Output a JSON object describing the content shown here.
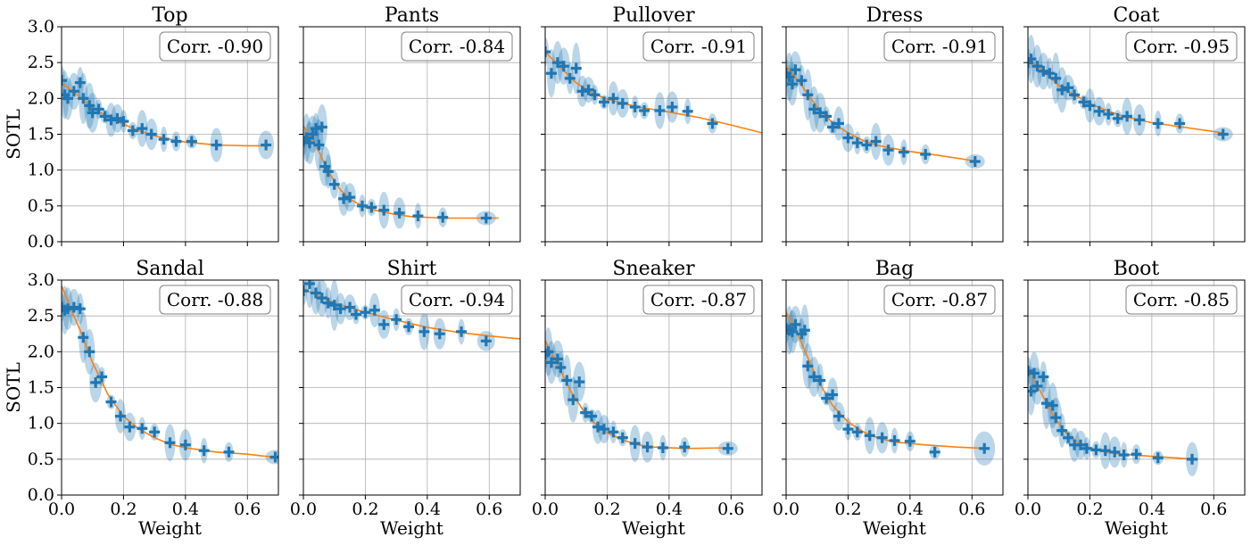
{
  "chart_data": {
    "type": "scatter",
    "x_axis_label": "Weight",
    "y_axis_label": "SOTL",
    "xlim": [
      0,
      0.7
    ],
    "ylim": [
      0,
      3.0
    ],
    "x_ticks": [
      0.0,
      0.2,
      0.4,
      0.6
    ],
    "x_tick_labels": [
      "0.0",
      "0.2",
      "0.4",
      "0.6"
    ],
    "y_ticks": [
      0.0,
      0.5,
      1.0,
      1.5,
      2.0,
      2.5,
      3.0
    ],
    "y_tick_labels": [
      "0.0",
      "0.5",
      "1.0",
      "1.5",
      "2.0",
      "2.5",
      "3.0"
    ],
    "grid": true,
    "colors": {
      "points": "#1f77b4",
      "fit_line": "#ff7f0e",
      "ellipse": "#1f77b4"
    },
    "panels": [
      {
        "title": "Top",
        "correlation": "Corr. -0.90",
        "points": [
          [
            0.0,
            2.25
          ],
          [
            0.01,
            2.05
          ],
          [
            0.02,
            2.0
          ],
          [
            0.04,
            2.1
          ],
          [
            0.06,
            2.22
          ],
          [
            0.07,
            2.0
          ],
          [
            0.09,
            1.9
          ],
          [
            0.1,
            1.8
          ],
          [
            0.12,
            1.85
          ],
          [
            0.14,
            1.75
          ],
          [
            0.16,
            1.7
          ],
          [
            0.18,
            1.72
          ],
          [
            0.2,
            1.68
          ],
          [
            0.23,
            1.55
          ],
          [
            0.26,
            1.58
          ],
          [
            0.29,
            1.5
          ],
          [
            0.33,
            1.43
          ],
          [
            0.37,
            1.4
          ],
          [
            0.42,
            1.4
          ],
          [
            0.5,
            1.35
          ],
          [
            0.66,
            1.35
          ]
        ],
        "fit": [
          [
            0.0,
            2.22
          ],
          [
            0.05,
            2.05
          ],
          [
            0.1,
            1.87
          ],
          [
            0.15,
            1.74
          ],
          [
            0.2,
            1.64
          ],
          [
            0.25,
            1.55
          ],
          [
            0.3,
            1.48
          ],
          [
            0.35,
            1.43
          ],
          [
            0.4,
            1.39
          ],
          [
            0.5,
            1.35
          ],
          [
            0.6,
            1.34
          ],
          [
            0.66,
            1.34
          ]
        ]
      },
      {
        "title": "Pants",
        "correlation": "Corr. -0.84",
        "points": [
          [
            0.0,
            1.4
          ],
          [
            0.01,
            1.45
          ],
          [
            0.02,
            1.38
          ],
          [
            0.03,
            1.5
          ],
          [
            0.04,
            1.58
          ],
          [
            0.05,
            1.35
          ],
          [
            0.06,
            1.6
          ],
          [
            0.07,
            1.05
          ],
          [
            0.08,
            0.98
          ],
          [
            0.1,
            0.8
          ],
          [
            0.13,
            0.6
          ],
          [
            0.15,
            0.62
          ],
          [
            0.19,
            0.5
          ],
          [
            0.22,
            0.48
          ],
          [
            0.26,
            0.44
          ],
          [
            0.31,
            0.4
          ],
          [
            0.37,
            0.36
          ],
          [
            0.45,
            0.34
          ],
          [
            0.59,
            0.33
          ]
        ],
        "fit": [
          [
            0.0,
            1.62
          ],
          [
            0.04,
            1.35
          ],
          [
            0.08,
            0.98
          ],
          [
            0.12,
            0.72
          ],
          [
            0.16,
            0.57
          ],
          [
            0.2,
            0.48
          ],
          [
            0.25,
            0.42
          ],
          [
            0.3,
            0.38
          ],
          [
            0.35,
            0.35
          ],
          [
            0.45,
            0.33
          ],
          [
            0.55,
            0.33
          ],
          [
            0.63,
            0.33
          ]
        ]
      },
      {
        "title": "Pullover",
        "correlation": "Corr. -0.91",
        "points": [
          [
            0.0,
            2.65
          ],
          [
            0.02,
            2.35
          ],
          [
            0.04,
            2.5
          ],
          [
            0.06,
            2.45
          ],
          [
            0.08,
            2.28
          ],
          [
            0.1,
            2.42
          ],
          [
            0.12,
            2.1
          ],
          [
            0.14,
            2.12
          ],
          [
            0.16,
            2.05
          ],
          [
            0.19,
            1.95
          ],
          [
            0.22,
            2.0
          ],
          [
            0.25,
            1.93
          ],
          [
            0.29,
            1.88
          ],
          [
            0.32,
            1.83
          ],
          [
            0.37,
            1.83
          ],
          [
            0.41,
            1.88
          ],
          [
            0.46,
            1.82
          ],
          [
            0.54,
            1.65
          ]
        ],
        "fit": [
          [
            0.0,
            2.65
          ],
          [
            0.05,
            2.43
          ],
          [
            0.1,
            2.22
          ],
          [
            0.15,
            2.08
          ],
          [
            0.2,
            1.99
          ],
          [
            0.3,
            1.88
          ],
          [
            0.4,
            1.81
          ],
          [
            0.5,
            1.73
          ],
          [
            0.6,
            1.63
          ],
          [
            0.7,
            1.52
          ]
        ]
      },
      {
        "title": "Dress",
        "correlation": "Corr. -0.91",
        "points": [
          [
            0.0,
            2.35
          ],
          [
            0.01,
            2.3
          ],
          [
            0.02,
            2.2
          ],
          [
            0.03,
            2.4
          ],
          [
            0.05,
            2.25
          ],
          [
            0.07,
            2.05
          ],
          [
            0.09,
            1.85
          ],
          [
            0.11,
            1.8
          ],
          [
            0.13,
            1.75
          ],
          [
            0.15,
            1.6
          ],
          [
            0.17,
            1.65
          ],
          [
            0.2,
            1.45
          ],
          [
            0.23,
            1.38
          ],
          [
            0.26,
            1.35
          ],
          [
            0.29,
            1.4
          ],
          [
            0.33,
            1.28
          ],
          [
            0.38,
            1.25
          ],
          [
            0.45,
            1.22
          ],
          [
            0.61,
            1.12
          ]
        ],
        "fit": [
          [
            0.0,
            2.45
          ],
          [
            0.05,
            2.18
          ],
          [
            0.1,
            1.88
          ],
          [
            0.15,
            1.66
          ],
          [
            0.2,
            1.52
          ],
          [
            0.25,
            1.41
          ],
          [
            0.3,
            1.34
          ],
          [
            0.4,
            1.26
          ],
          [
            0.5,
            1.2
          ],
          [
            0.62,
            1.12
          ]
        ]
      },
      {
        "title": "Coat",
        "correlation": "Corr. -0.95",
        "points": [
          [
            0.0,
            2.5
          ],
          [
            0.01,
            2.55
          ],
          [
            0.03,
            2.45
          ],
          [
            0.05,
            2.38
          ],
          [
            0.07,
            2.35
          ],
          [
            0.09,
            2.28
          ],
          [
            0.11,
            2.12
          ],
          [
            0.13,
            2.15
          ],
          [
            0.15,
            2.05
          ],
          [
            0.18,
            1.95
          ],
          [
            0.2,
            1.9
          ],
          [
            0.23,
            1.82
          ],
          [
            0.26,
            1.78
          ],
          [
            0.29,
            1.72
          ],
          [
            0.32,
            1.75
          ],
          [
            0.36,
            1.7
          ],
          [
            0.42,
            1.65
          ],
          [
            0.49,
            1.65
          ],
          [
            0.63,
            1.5
          ]
        ],
        "fit": [
          [
            0.0,
            2.55
          ],
          [
            0.05,
            2.38
          ],
          [
            0.1,
            2.18
          ],
          [
            0.15,
            2.05
          ],
          [
            0.2,
            1.93
          ],
          [
            0.25,
            1.84
          ],
          [
            0.3,
            1.76
          ],
          [
            0.4,
            1.66
          ],
          [
            0.5,
            1.6
          ],
          [
            0.63,
            1.52
          ]
        ]
      },
      {
        "title": "Sandal",
        "correlation": "Corr. -0.88",
        "points": [
          [
            0.0,
            2.62
          ],
          [
            0.01,
            2.58
          ],
          [
            0.02,
            2.6
          ],
          [
            0.04,
            2.62
          ],
          [
            0.06,
            2.6
          ],
          [
            0.07,
            2.2
          ],
          [
            0.09,
            2.0
          ],
          [
            0.11,
            1.57
          ],
          [
            0.13,
            1.65
          ],
          [
            0.16,
            1.3
          ],
          [
            0.19,
            1.1
          ],
          [
            0.22,
            0.95
          ],
          [
            0.26,
            0.93
          ],
          [
            0.3,
            0.88
          ],
          [
            0.35,
            0.73
          ],
          [
            0.4,
            0.7
          ],
          [
            0.46,
            0.62
          ],
          [
            0.54,
            0.6
          ],
          [
            0.69,
            0.53
          ]
        ],
        "fit": [
          [
            0.0,
            2.92
          ],
          [
            0.03,
            2.6
          ],
          [
            0.06,
            2.3
          ],
          [
            0.1,
            1.85
          ],
          [
            0.15,
            1.4
          ],
          [
            0.2,
            1.1
          ],
          [
            0.25,
            0.92
          ],
          [
            0.3,
            0.8
          ],
          [
            0.35,
            0.71
          ],
          [
            0.4,
            0.66
          ],
          [
            0.5,
            0.6
          ],
          [
            0.6,
            0.57
          ],
          [
            0.7,
            0.52
          ]
        ]
      },
      {
        "title": "Shirt",
        "correlation": "Corr. -0.94",
        "points": [
          [
            0.0,
            2.85
          ],
          [
            0.02,
            2.95
          ],
          [
            0.04,
            2.82
          ],
          [
            0.06,
            2.75
          ],
          [
            0.08,
            2.68
          ],
          [
            0.1,
            2.65
          ],
          [
            0.12,
            2.6
          ],
          [
            0.15,
            2.62
          ],
          [
            0.17,
            2.52
          ],
          [
            0.2,
            2.55
          ],
          [
            0.23,
            2.58
          ],
          [
            0.26,
            2.38
          ],
          [
            0.3,
            2.45
          ],
          [
            0.34,
            2.35
          ],
          [
            0.39,
            2.28
          ],
          [
            0.44,
            2.25
          ],
          [
            0.51,
            2.28
          ],
          [
            0.59,
            2.15
          ]
        ],
        "fit": [
          [
            0.0,
            2.87
          ],
          [
            0.05,
            2.78
          ],
          [
            0.1,
            2.68
          ],
          [
            0.2,
            2.55
          ],
          [
            0.3,
            2.44
          ],
          [
            0.4,
            2.34
          ],
          [
            0.5,
            2.27
          ],
          [
            0.6,
            2.22
          ],
          [
            0.7,
            2.18
          ]
        ]
      },
      {
        "title": "Sneaker",
        "correlation": "Corr. -0.87",
        "points": [
          [
            0.0,
            1.97
          ],
          [
            0.01,
            2.0
          ],
          [
            0.02,
            1.85
          ],
          [
            0.04,
            1.9
          ],
          [
            0.05,
            1.78
          ],
          [
            0.07,
            1.6
          ],
          [
            0.09,
            1.33
          ],
          [
            0.11,
            1.58
          ],
          [
            0.13,
            1.15
          ],
          [
            0.15,
            1.1
          ],
          [
            0.17,
            0.95
          ],
          [
            0.19,
            0.92
          ],
          [
            0.22,
            0.88
          ],
          [
            0.25,
            0.8
          ],
          [
            0.29,
            0.72
          ],
          [
            0.33,
            0.67
          ],
          [
            0.38,
            0.66
          ],
          [
            0.45,
            0.67
          ],
          [
            0.59,
            0.65
          ]
        ],
        "fit": [
          [
            0.0,
            2.15
          ],
          [
            0.04,
            1.82
          ],
          [
            0.08,
            1.47
          ],
          [
            0.12,
            1.2
          ],
          [
            0.16,
            1.0
          ],
          [
            0.2,
            0.87
          ],
          [
            0.25,
            0.77
          ],
          [
            0.3,
            0.7
          ],
          [
            0.35,
            0.67
          ],
          [
            0.45,
            0.65
          ],
          [
            0.6,
            0.66
          ]
        ]
      },
      {
        "title": "Bag",
        "correlation": "Corr. -0.87",
        "points": [
          [
            0.0,
            2.32
          ],
          [
            0.01,
            2.3
          ],
          [
            0.02,
            2.28
          ],
          [
            0.03,
            2.38
          ],
          [
            0.05,
            2.25
          ],
          [
            0.06,
            2.3
          ],
          [
            0.07,
            1.8
          ],
          [
            0.09,
            1.65
          ],
          [
            0.11,
            1.6
          ],
          [
            0.13,
            1.35
          ],
          [
            0.15,
            1.4
          ],
          [
            0.17,
            1.1
          ],
          [
            0.2,
            0.92
          ],
          [
            0.23,
            0.88
          ],
          [
            0.27,
            0.83
          ],
          [
            0.31,
            0.8
          ],
          [
            0.35,
            0.76
          ],
          [
            0.4,
            0.75
          ],
          [
            0.48,
            0.6
          ],
          [
            0.64,
            0.65
          ]
        ],
        "fit": [
          [
            0.0,
            2.55
          ],
          [
            0.03,
            2.32
          ],
          [
            0.06,
            2.02
          ],
          [
            0.1,
            1.62
          ],
          [
            0.15,
            1.25
          ],
          [
            0.2,
            1.02
          ],
          [
            0.25,
            0.88
          ],
          [
            0.3,
            0.79
          ],
          [
            0.35,
            0.74
          ],
          [
            0.45,
            0.7
          ],
          [
            0.55,
            0.67
          ],
          [
            0.65,
            0.65
          ]
        ]
      },
      {
        "title": "Boot",
        "correlation": "Corr. -0.85",
        "points": [
          [
            0.0,
            1.73
          ],
          [
            0.01,
            1.45
          ],
          [
            0.02,
            1.7
          ],
          [
            0.03,
            1.52
          ],
          [
            0.05,
            1.65
          ],
          [
            0.06,
            1.28
          ],
          [
            0.08,
            1.25
          ],
          [
            0.09,
            1.08
          ],
          [
            0.11,
            0.9
          ],
          [
            0.13,
            0.8
          ],
          [
            0.15,
            0.7
          ],
          [
            0.17,
            0.7
          ],
          [
            0.19,
            0.65
          ],
          [
            0.22,
            0.63
          ],
          [
            0.25,
            0.62
          ],
          [
            0.28,
            0.6
          ],
          [
            0.31,
            0.56
          ],
          [
            0.35,
            0.57
          ],
          [
            0.42,
            0.52
          ],
          [
            0.53,
            0.5
          ]
        ],
        "fit": [
          [
            0.0,
            1.78
          ],
          [
            0.04,
            1.45
          ],
          [
            0.08,
            1.12
          ],
          [
            0.12,
            0.88
          ],
          [
            0.16,
            0.74
          ],
          [
            0.2,
            0.66
          ],
          [
            0.25,
            0.6
          ],
          [
            0.3,
            0.57
          ],
          [
            0.4,
            0.54
          ],
          [
            0.54,
            0.5
          ]
        ]
      }
    ]
  }
}
